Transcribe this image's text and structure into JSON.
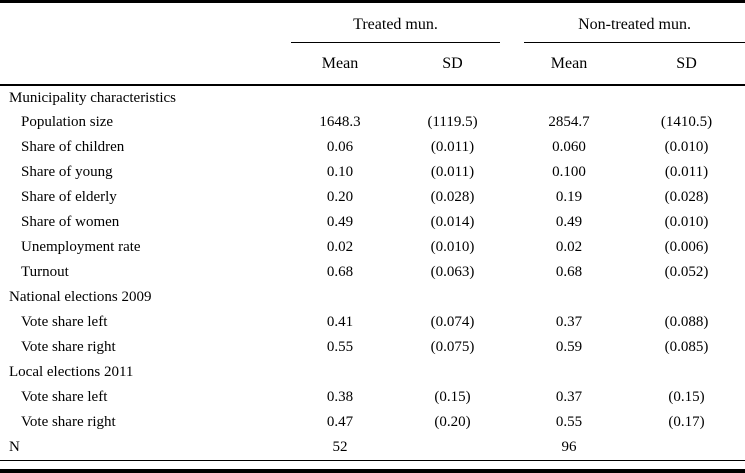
{
  "table": {
    "header": {
      "groups": [
        {
          "label": "Treated mun."
        },
        {
          "label": "Non-treated mun."
        }
      ],
      "subcols": [
        "Mean",
        "SD",
        "Mean",
        "SD"
      ]
    },
    "rows": [
      {
        "type": "section",
        "label": "Municipality characteristics",
        "values": [
          "",
          "",
          "",
          ""
        ]
      },
      {
        "type": "data",
        "label": "Population size",
        "values": [
          "1648.3",
          "(1119.5)",
          "2854.7",
          "(1410.5)"
        ]
      },
      {
        "type": "data",
        "label": "Share of children",
        "values": [
          "0.06",
          "(0.011)",
          "0.060",
          "(0.010)"
        ]
      },
      {
        "type": "data",
        "label": "Share of young",
        "values": [
          "0.10",
          "(0.011)",
          "0.100",
          "(0.011)"
        ]
      },
      {
        "type": "data",
        "label": "Share of elderly",
        "values": [
          "0.20",
          "(0.028)",
          "0.19",
          "(0.028)"
        ]
      },
      {
        "type": "data",
        "label": "Share of women",
        "values": [
          "0.49",
          "(0.014)",
          "0.49",
          "(0.010)"
        ]
      },
      {
        "type": "data",
        "label": "Unemployment rate",
        "values": [
          "0.02",
          "(0.010)",
          "0.02",
          "(0.006)"
        ]
      },
      {
        "type": "data",
        "label": "Turnout",
        "values": [
          "0.68",
          "(0.063)",
          "0.68",
          "(0.052)"
        ]
      },
      {
        "type": "section",
        "label": "National elections 2009",
        "values": [
          "",
          "",
          "",
          ""
        ]
      },
      {
        "type": "data",
        "label": "Vote share left",
        "values": [
          "0.41",
          "(0.074)",
          "0.37",
          "(0.088)"
        ]
      },
      {
        "type": "data",
        "label": "Vote share right",
        "values": [
          "0.55",
          "(0.075)",
          "0.59",
          "(0.085)"
        ]
      },
      {
        "type": "section",
        "label": "Local elections 2011",
        "values": [
          "",
          "",
          "",
          ""
        ]
      },
      {
        "type": "data",
        "label": "Vote share left",
        "values": [
          "0.38",
          "(0.15)",
          "0.37",
          "(0.15)"
        ]
      },
      {
        "type": "data",
        "label": "Vote share right",
        "values": [
          "0.47",
          "(0.20)",
          "0.55",
          "(0.17)"
        ]
      },
      {
        "type": "total",
        "label": "N",
        "values": [
          "52",
          "",
          "96",
          ""
        ]
      }
    ]
  }
}
